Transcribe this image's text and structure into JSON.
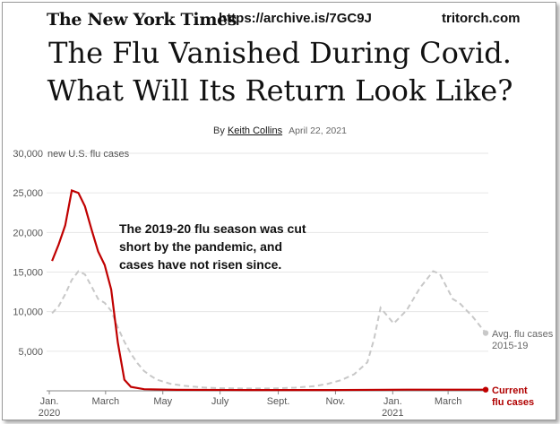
{
  "header": {
    "logo": "The New York Times",
    "url": "https://archive.is/7GC9J",
    "site": "tritorch.com"
  },
  "article": {
    "headline_line1": "The Flu Vanished During Covid.",
    "headline_line2": "What Will Its Return Look Like?",
    "by": "By",
    "author": "Keith Collins",
    "date": "April 22, 2021"
  },
  "colors": {
    "current": "#c00000",
    "average": "#c8c8c8",
    "grid": "#e6e6e6"
  },
  "chart_data": {
    "type": "line",
    "ylabel": "new U.S. flu cases",
    "ylim": [
      0,
      30000
    ],
    "yticks": [
      5000,
      10000,
      15000,
      20000,
      25000,
      30000
    ],
    "ytick_labels": [
      "5,000",
      "10,000",
      "15,000",
      "20,000",
      "25,000",
      "30,000"
    ],
    "x_ticks": [
      {
        "label": "Jan.",
        "sub": "2020",
        "date": "2020-01-01"
      },
      {
        "label": "March",
        "sub": "",
        "date": "2020-03-01"
      },
      {
        "label": "May",
        "sub": "",
        "date": "2020-05-01"
      },
      {
        "label": "July",
        "sub": "",
        "date": "2020-07-01"
      },
      {
        "label": "Sept.",
        "sub": "",
        "date": "2020-09-01"
      },
      {
        "label": "Nov.",
        "sub": "",
        "date": "2020-11-01"
      },
      {
        "label": "Jan.",
        "sub": "2021",
        "date": "2021-01-01"
      },
      {
        "label": "March",
        "sub": "",
        "date": "2021-03-01"
      }
    ],
    "annotation": [
      "The 2019-20 flu season was cut",
      "short by the pandemic, and",
      "cases have not risen since."
    ],
    "series": [
      {
        "name": "Avg. flu cases 2015-19",
        "label_lines": [
          "Avg. flu cases",
          "2015-19"
        ],
        "style": "dashed",
        "points": [
          [
            "2020-01-04",
            9800
          ],
          [
            "2020-01-11",
            10700
          ],
          [
            "2020-01-18",
            12200
          ],
          [
            "2020-01-25",
            14000
          ],
          [
            "2020-02-01",
            15100
          ],
          [
            "2020-02-08",
            14700
          ],
          [
            "2020-02-15",
            13200
          ],
          [
            "2020-02-22",
            11600
          ],
          [
            "2020-02-29",
            11100
          ],
          [
            "2020-03-07",
            10100
          ],
          [
            "2020-03-14",
            8000
          ],
          [
            "2020-03-21",
            6200
          ],
          [
            "2020-03-28",
            4700
          ],
          [
            "2020-04-04",
            3500
          ],
          [
            "2020-04-11",
            2500
          ],
          [
            "2020-04-18",
            1900
          ],
          [
            "2020-04-25",
            1400
          ],
          [
            "2020-05-09",
            900
          ],
          [
            "2020-05-23",
            650
          ],
          [
            "2020-06-13",
            420
          ],
          [
            "2020-07-04",
            330
          ],
          [
            "2020-08-01",
            300
          ],
          [
            "2020-08-29",
            310
          ],
          [
            "2020-09-19",
            400
          ],
          [
            "2020-10-10",
            600
          ],
          [
            "2020-10-24",
            900
          ],
          [
            "2020-11-07",
            1350
          ],
          [
            "2020-11-21",
            2100
          ],
          [
            "2020-12-05",
            3600
          ],
          [
            "2020-12-12",
            6500
          ],
          [
            "2020-12-19",
            10500
          ],
          [
            "2021-01-02",
            8500
          ],
          [
            "2021-01-16",
            10200
          ],
          [
            "2021-01-30",
            13000
          ],
          [
            "2021-02-13",
            15100
          ],
          [
            "2021-02-20",
            14800
          ],
          [
            "2021-03-06",
            11600
          ],
          [
            "2021-03-13",
            11100
          ],
          [
            "2021-03-27",
            9400
          ],
          [
            "2021-04-10",
            7300
          ]
        ]
      },
      {
        "name": "Current flu cases",
        "label_lines": [
          "Current",
          "flu cases"
        ],
        "style": "solid",
        "points": [
          [
            "2020-01-04",
            16400
          ],
          [
            "2020-01-11",
            18500
          ],
          [
            "2020-01-18",
            20900
          ],
          [
            "2020-01-25",
            25300
          ],
          [
            "2020-02-01",
            25000
          ],
          [
            "2020-02-08",
            23300
          ],
          [
            "2020-02-15",
            20400
          ],
          [
            "2020-02-22",
            17600
          ],
          [
            "2020-02-29",
            15900
          ],
          [
            "2020-03-07",
            12800
          ],
          [
            "2020-03-14",
            6100
          ],
          [
            "2020-03-21",
            1400
          ],
          [
            "2020-03-28",
            500
          ],
          [
            "2020-04-11",
            200
          ],
          [
            "2020-05-16",
            130
          ],
          [
            "2020-08-01",
            100
          ],
          [
            "2020-11-01",
            100
          ],
          [
            "2021-01-16",
            150
          ],
          [
            "2021-04-10",
            150
          ]
        ]
      }
    ]
  }
}
